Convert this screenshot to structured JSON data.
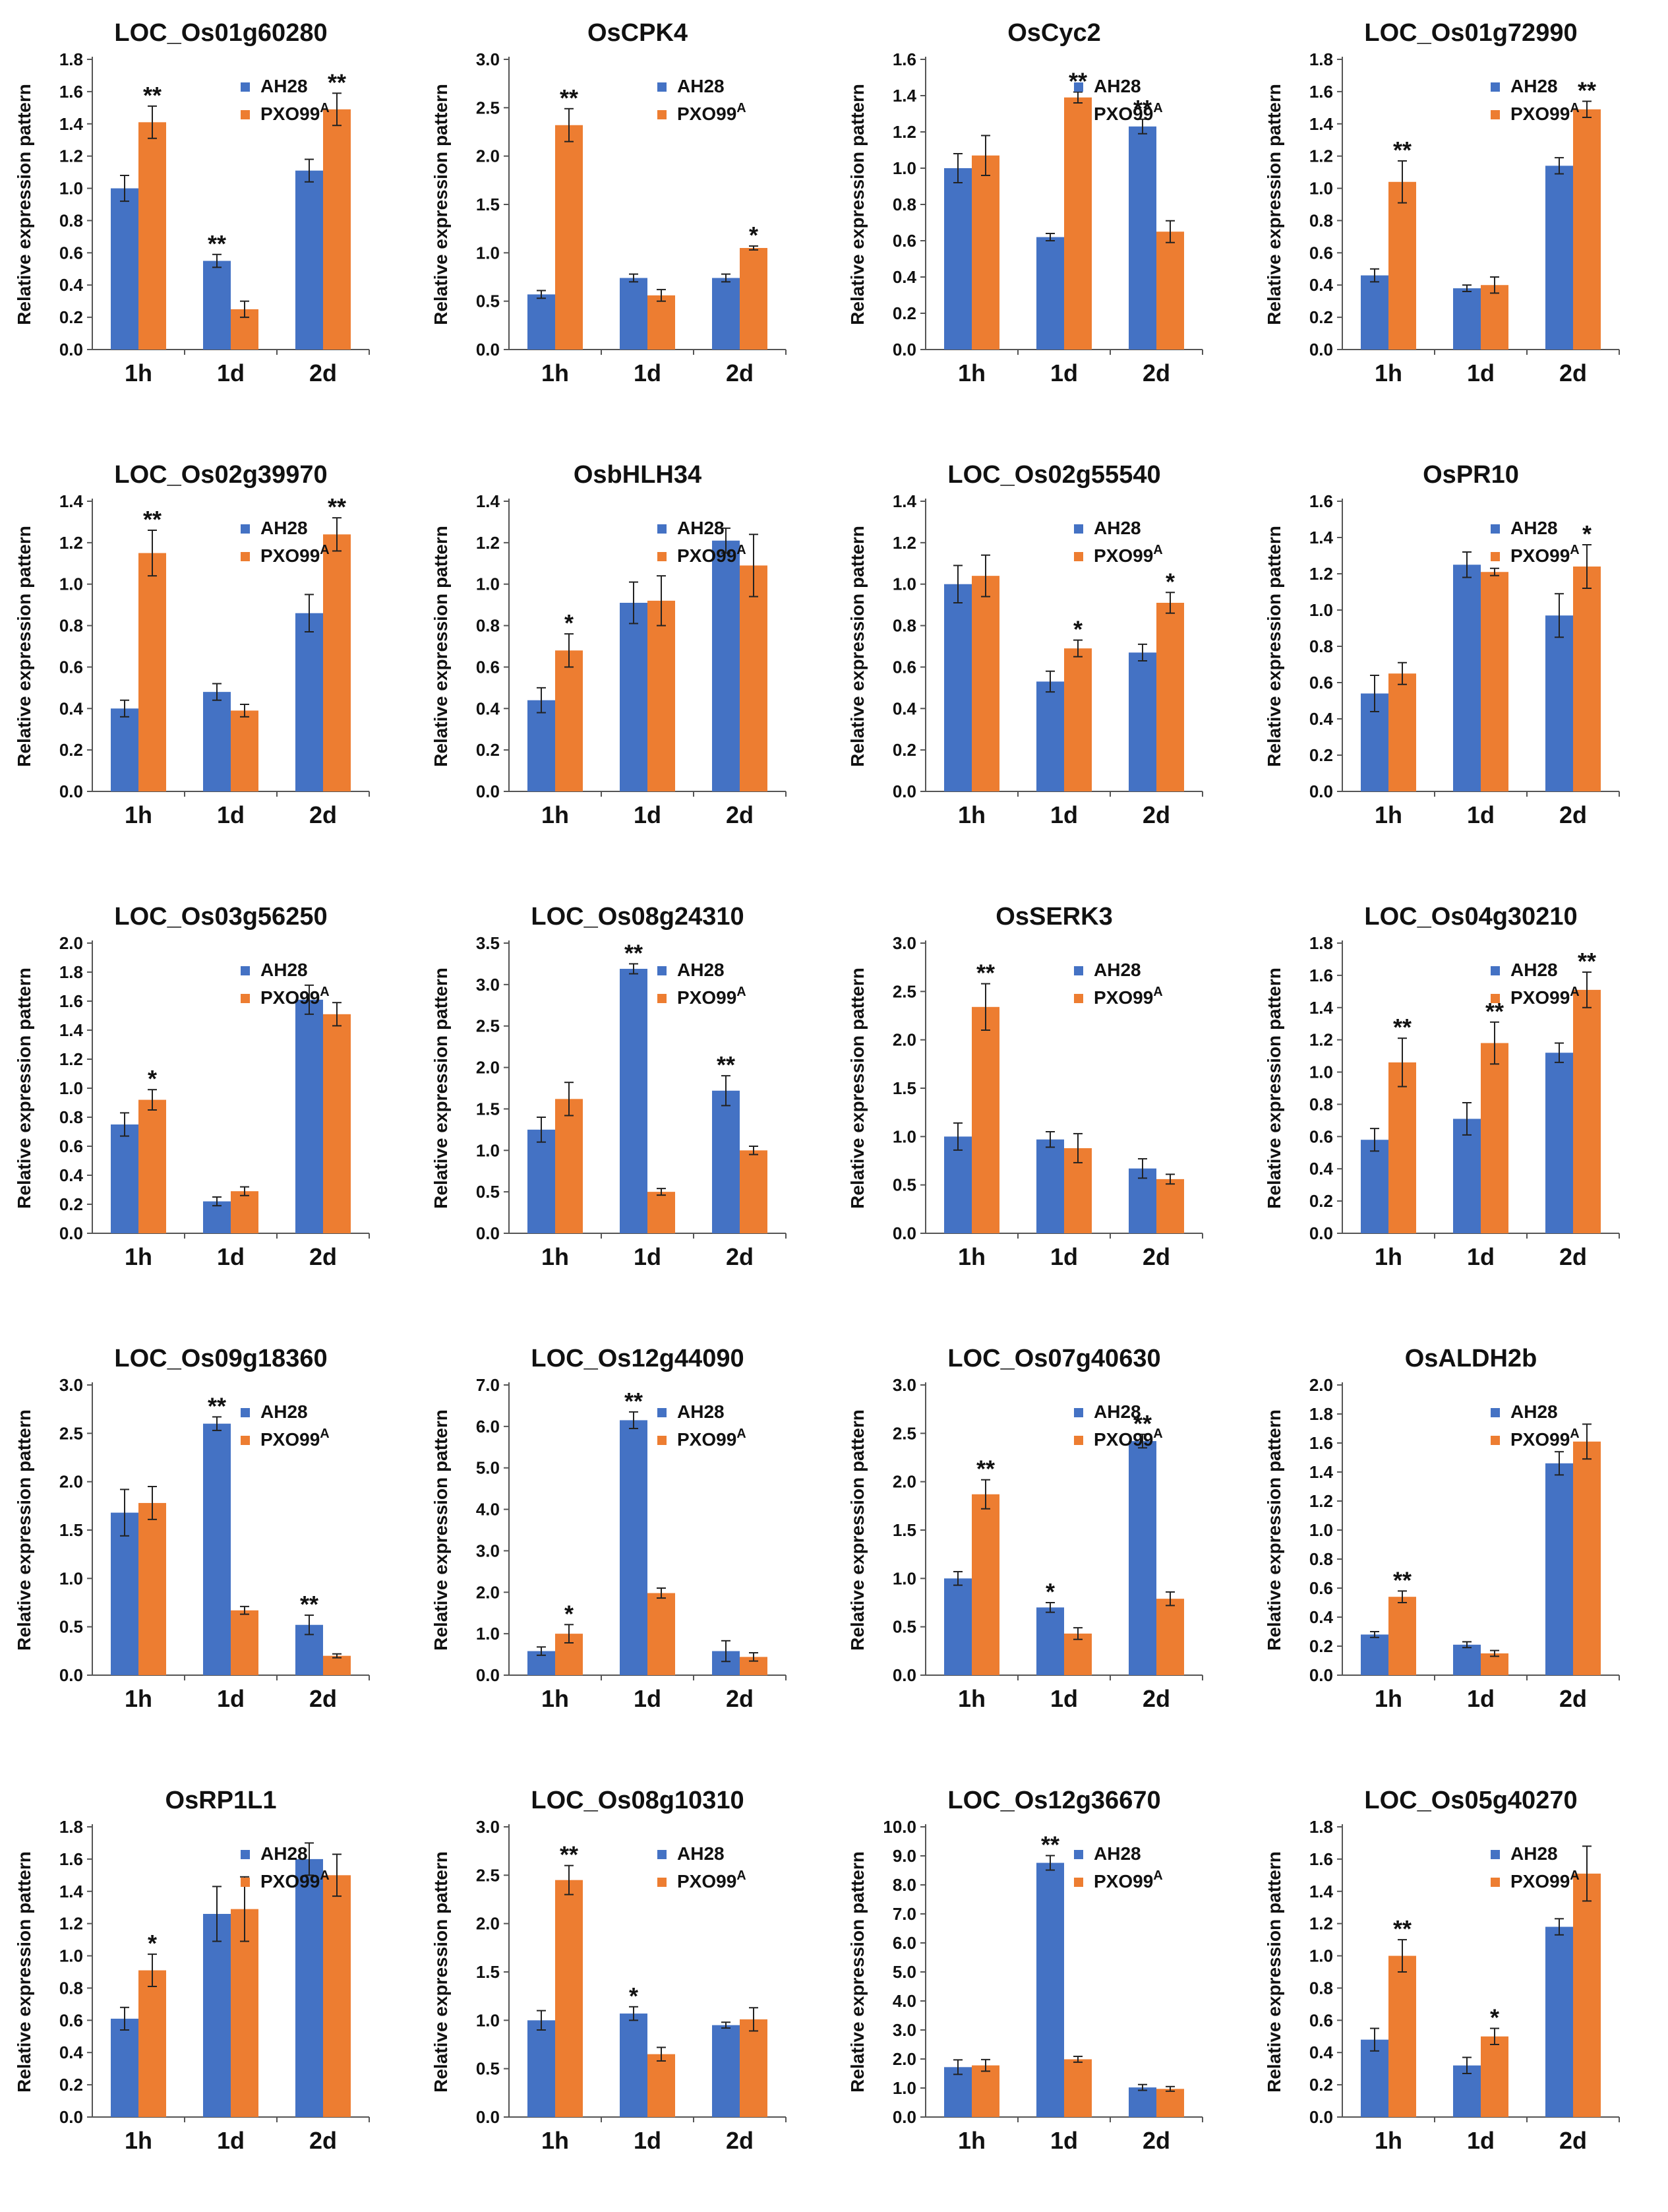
{
  "figure": {
    "series_names": [
      "AH28",
      "PXO99"
    ],
    "series_superscript": [
      "",
      "A"
    ],
    "series_colors": [
      "#4472C4",
      "#ED7D31"
    ],
    "ylabel": "Relative expression pattern"
  },
  "chart_data": [
    {
      "type": "bar",
      "title": "LOC_Os01g60280",
      "categories": [
        "1h",
        "1d",
        "2d"
      ],
      "ylim": [
        0,
        1.8
      ],
      "ticks": [
        "0.0",
        "0.2",
        "0.4",
        "0.6",
        "0.8",
        "1.0",
        "1.2",
        "1.4",
        "1.6",
        "1.8"
      ],
      "series": [
        {
          "name": "AH28",
          "values": [
            1.0,
            0.55,
            1.11
          ],
          "errors": [
            0.08,
            0.04,
            0.07
          ],
          "sig": [
            "",
            "**",
            ""
          ]
        },
        {
          "name": "PXO99A",
          "values": [
            1.41,
            0.25,
            1.49
          ],
          "errors": [
            0.1,
            0.05,
            0.1
          ],
          "sig": [
            "**",
            "",
            "**"
          ]
        }
      ]
    },
    {
      "type": "bar",
      "title": "OsCPK4",
      "categories": [
        "1h",
        "1d",
        "2d"
      ],
      "ylim": [
        0,
        3.0
      ],
      "ticks": [
        "0.0",
        "0.5",
        "1.0",
        "1.5",
        "2.0",
        "2.5",
        "3.0"
      ],
      "series": [
        {
          "name": "AH28",
          "values": [
            0.57,
            0.74,
            0.74
          ],
          "errors": [
            0.04,
            0.04,
            0.04
          ],
          "sig": [
            "",
            "",
            ""
          ]
        },
        {
          "name": "PXO99A",
          "values": [
            2.32,
            0.56,
            1.05
          ],
          "errors": [
            0.17,
            0.06,
            0.02
          ],
          "sig": [
            "**",
            "",
            "*"
          ]
        }
      ]
    },
    {
      "type": "bar",
      "title": "OsCyc2",
      "categories": [
        "1h",
        "1d",
        "2d"
      ],
      "ylim": [
        0,
        1.6
      ],
      "ticks": [
        "0.0",
        "0.2",
        "0.4",
        "0.6",
        "0.8",
        "1.0",
        "1.2",
        "1.4",
        "1.6"
      ],
      "series": [
        {
          "name": "AH28",
          "values": [
            1.0,
            0.62,
            1.23
          ],
          "errors": [
            0.08,
            0.02,
            0.04
          ],
          "sig": [
            "",
            "",
            "**"
          ]
        },
        {
          "name": "PXO99A",
          "values": [
            1.07,
            1.39,
            0.65
          ],
          "errors": [
            0.11,
            0.03,
            0.06
          ],
          "sig": [
            "",
            "**",
            ""
          ]
        }
      ]
    },
    {
      "type": "bar",
      "title": "LOC_Os01g72990",
      "categories": [
        "1h",
        "1d",
        "2d"
      ],
      "ylim": [
        0,
        1.8
      ],
      "ticks": [
        "0.0",
        "0.2",
        "0.4",
        "0.6",
        "0.8",
        "1.0",
        "1.2",
        "1.4",
        "1.6",
        "1.8"
      ],
      "series": [
        {
          "name": "AH28",
          "values": [
            0.46,
            0.38,
            1.14
          ],
          "errors": [
            0.04,
            0.02,
            0.05
          ],
          "sig": [
            "",
            "",
            ""
          ]
        },
        {
          "name": "PXO99A",
          "values": [
            1.04,
            0.4,
            1.49
          ],
          "errors": [
            0.13,
            0.05,
            0.05
          ],
          "sig": [
            "**",
            "",
            "**"
          ]
        }
      ]
    },
    {
      "type": "bar",
      "title": "LOC_Os02g39970",
      "categories": [
        "1h",
        "1d",
        "2d"
      ],
      "ylim": [
        0,
        1.4
      ],
      "ticks": [
        "0.0",
        "0.2",
        "0.4",
        "0.6",
        "0.8",
        "1.0",
        "1.2",
        "1.4"
      ],
      "series": [
        {
          "name": "AH28",
          "values": [
            0.4,
            0.48,
            0.86
          ],
          "errors": [
            0.04,
            0.04,
            0.09
          ],
          "sig": [
            "",
            "",
            ""
          ]
        },
        {
          "name": "PXO99A",
          "values": [
            1.15,
            0.39,
            1.24
          ],
          "errors": [
            0.11,
            0.03,
            0.08
          ],
          "sig": [
            "**",
            "",
            "**"
          ]
        }
      ]
    },
    {
      "type": "bar",
      "title": "OsbHLH34",
      "categories": [
        "1h",
        "1d",
        "2d"
      ],
      "ylim": [
        0,
        1.4
      ],
      "ticks": [
        "0.0",
        "0.2",
        "0.4",
        "0.6",
        "0.8",
        "1.0",
        "1.2",
        "1.4"
      ],
      "series": [
        {
          "name": "AH28",
          "values": [
            0.44,
            0.91,
            1.21
          ],
          "errors": [
            0.06,
            0.1,
            0.06
          ],
          "sig": [
            "",
            "",
            ""
          ]
        },
        {
          "name": "PXO99A",
          "values": [
            0.68,
            0.92,
            1.09
          ],
          "errors": [
            0.08,
            0.12,
            0.15
          ],
          "sig": [
            "*",
            "",
            ""
          ]
        }
      ]
    },
    {
      "type": "bar",
      "title": "LOC_Os02g55540",
      "categories": [
        "1h",
        "1d",
        "2d"
      ],
      "ylim": [
        0,
        1.4
      ],
      "ticks": [
        "0.0",
        "0.2",
        "0.4",
        "0.6",
        "0.8",
        "1.0",
        "1.2",
        "1.4"
      ],
      "series": [
        {
          "name": "AH28",
          "values": [
            1.0,
            0.53,
            0.67
          ],
          "errors": [
            0.09,
            0.05,
            0.04
          ],
          "sig": [
            "",
            "",
            ""
          ]
        },
        {
          "name": "PXO99A",
          "values": [
            1.04,
            0.69,
            0.91
          ],
          "errors": [
            0.1,
            0.04,
            0.05
          ],
          "sig": [
            "",
            "*",
            "*"
          ]
        }
      ]
    },
    {
      "type": "bar",
      "title": "OsPR10",
      "categories": [
        "1h",
        "1d",
        "2d"
      ],
      "ylim": [
        0,
        1.6
      ],
      "ticks": [
        "0.0",
        "0.2",
        "0.4",
        "0.6",
        "0.8",
        "1.0",
        "1.2",
        "1.4",
        "1.6"
      ],
      "series": [
        {
          "name": "AH28",
          "values": [
            0.54,
            1.25,
            0.97
          ],
          "errors": [
            0.1,
            0.07,
            0.12
          ],
          "sig": [
            "",
            "",
            ""
          ]
        },
        {
          "name": "PXO99A",
          "values": [
            0.65,
            1.21,
            1.24
          ],
          "errors": [
            0.06,
            0.02,
            0.12
          ],
          "sig": [
            "",
            "",
            "*"
          ]
        }
      ]
    },
    {
      "type": "bar",
      "title": "LOC_Os03g56250",
      "categories": [
        "1h",
        "1d",
        "2d"
      ],
      "ylim": [
        0,
        2.0
      ],
      "ticks": [
        "0.0",
        "0.2",
        "0.4",
        "0.6",
        "0.8",
        "1.0",
        "1.2",
        "1.4",
        "1.6",
        "1.8",
        "2.0"
      ],
      "series": [
        {
          "name": "AH28",
          "values": [
            0.75,
            0.22,
            1.61
          ],
          "errors": [
            0.08,
            0.03,
            0.1
          ],
          "sig": [
            "",
            "",
            ""
          ]
        },
        {
          "name": "PXO99A",
          "values": [
            0.92,
            0.29,
            1.51
          ],
          "errors": [
            0.07,
            0.03,
            0.08
          ],
          "sig": [
            "*",
            "",
            ""
          ]
        }
      ]
    },
    {
      "type": "bar",
      "title": "LOC_Os08g24310",
      "categories": [
        "1h",
        "1d",
        "2d"
      ],
      "ylim": [
        0,
        3.5
      ],
      "ticks": [
        "0.0",
        "0.5",
        "1.0",
        "1.5",
        "2.0",
        "2.5",
        "3.0",
        "3.5"
      ],
      "series": [
        {
          "name": "AH28",
          "values": [
            1.25,
            3.19,
            1.72
          ],
          "errors": [
            0.15,
            0.06,
            0.18
          ],
          "sig": [
            "",
            "**",
            "**"
          ]
        },
        {
          "name": "PXO99A",
          "values": [
            1.62,
            0.5,
            1.0
          ],
          "errors": [
            0.2,
            0.04,
            0.05
          ],
          "sig": [
            "",
            "",
            ""
          ]
        }
      ]
    },
    {
      "type": "bar",
      "title": "OsSERK3",
      "categories": [
        "1h",
        "1d",
        "2d"
      ],
      "ylim": [
        0,
        3.0
      ],
      "ticks": [
        "0.0",
        "0.5",
        "1.0",
        "1.5",
        "2.0",
        "2.5",
        "3.0"
      ],
      "series": [
        {
          "name": "AH28",
          "values": [
            1.0,
            0.97,
            0.67
          ],
          "errors": [
            0.14,
            0.08,
            0.1
          ],
          "sig": [
            "",
            "",
            ""
          ]
        },
        {
          "name": "PXO99A",
          "values": [
            2.34,
            0.88,
            0.56
          ],
          "errors": [
            0.24,
            0.15,
            0.05
          ],
          "sig": [
            "**",
            "",
            ""
          ]
        }
      ]
    },
    {
      "type": "bar",
      "title": "LOC_Os04g30210",
      "categories": [
        "1h",
        "1d",
        "2d"
      ],
      "ylim": [
        0,
        1.8
      ],
      "ticks": [
        "0.0",
        "0.2",
        "0.4",
        "0.6",
        "0.8",
        "1.0",
        "1.2",
        "1.4",
        "1.6",
        "1.8"
      ],
      "series": [
        {
          "name": "AH28",
          "values": [
            0.58,
            0.71,
            1.12
          ],
          "errors": [
            0.07,
            0.1,
            0.06
          ],
          "sig": [
            "",
            "",
            ""
          ]
        },
        {
          "name": "PXO99A",
          "values": [
            1.06,
            1.18,
            1.51
          ],
          "errors": [
            0.15,
            0.13,
            0.11
          ],
          "sig": [
            "**",
            "**",
            "**"
          ]
        }
      ]
    },
    {
      "type": "bar",
      "title": "LOC_Os09g18360",
      "categories": [
        "1h",
        "1d",
        "2d"
      ],
      "ylim": [
        0,
        3.0
      ],
      "ticks": [
        "0.0",
        "0.5",
        "1.0",
        "1.5",
        "2.0",
        "2.5",
        "3.0"
      ],
      "series": [
        {
          "name": "AH28",
          "values": [
            1.68,
            2.6,
            0.52
          ],
          "errors": [
            0.24,
            0.07,
            0.1
          ],
          "sig": [
            "",
            "**",
            "**"
          ]
        },
        {
          "name": "PXO99A",
          "values": [
            1.78,
            0.67,
            0.2
          ],
          "errors": [
            0.17,
            0.04,
            0.02
          ],
          "sig": [
            "",
            "",
            ""
          ]
        }
      ]
    },
    {
      "type": "bar",
      "title": "LOC_Os12g44090",
      "categories": [
        "1h",
        "1d",
        "2d"
      ],
      "ylim": [
        0,
        7.0
      ],
      "ticks": [
        "0.0",
        "1.0",
        "2.0",
        "3.0",
        "4.0",
        "5.0",
        "6.0",
        "7.0"
      ],
      "series": [
        {
          "name": "AH28",
          "values": [
            0.58,
            6.15,
            0.58
          ],
          "errors": [
            0.1,
            0.2,
            0.25
          ],
          "sig": [
            "",
            "**",
            ""
          ]
        },
        {
          "name": "PXO99A",
          "values": [
            1.0,
            1.98,
            0.44
          ],
          "errors": [
            0.22,
            0.12,
            0.1
          ],
          "sig": [
            "*",
            "",
            ""
          ]
        }
      ]
    },
    {
      "type": "bar",
      "title": "LOC_Os07g40630",
      "categories": [
        "1h",
        "1d",
        "2d"
      ],
      "ylim": [
        0,
        3.0
      ],
      "ticks": [
        "0.0",
        "0.5",
        "1.0",
        "1.5",
        "2.0",
        "2.5",
        "3.0"
      ],
      "series": [
        {
          "name": "AH28",
          "values": [
            1.0,
            0.7,
            2.42
          ],
          "errors": [
            0.07,
            0.05,
            0.07
          ],
          "sig": [
            "",
            "*",
            "**"
          ]
        },
        {
          "name": "PXO99A",
          "values": [
            1.87,
            0.43,
            0.79
          ],
          "errors": [
            0.15,
            0.06,
            0.07
          ],
          "sig": [
            "**",
            "",
            ""
          ]
        }
      ]
    },
    {
      "type": "bar",
      "title": "OsALDH2b",
      "categories": [
        "1h",
        "1d",
        "2d"
      ],
      "ylim": [
        0,
        2.0
      ],
      "ticks": [
        "0.0",
        "0.2",
        "0.4",
        "0.6",
        "0.8",
        "1.0",
        "1.2",
        "1.4",
        "1.6",
        "1.8",
        "2.0"
      ],
      "series": [
        {
          "name": "AH28",
          "values": [
            0.28,
            0.21,
            1.46
          ],
          "errors": [
            0.02,
            0.02,
            0.08
          ],
          "sig": [
            "",
            "",
            ""
          ]
        },
        {
          "name": "PXO99A",
          "values": [
            0.54,
            0.15,
            1.61
          ],
          "errors": [
            0.04,
            0.02,
            0.12
          ],
          "sig": [
            "**",
            "",
            ""
          ]
        }
      ]
    },
    {
      "type": "bar",
      "title": "OsRP1L1",
      "categories": [
        "1h",
        "1d",
        "2d"
      ],
      "ylim": [
        0,
        1.8
      ],
      "ticks": [
        "0.0",
        "0.2",
        "0.4",
        "0.6",
        "0.8",
        "1.0",
        "1.2",
        "1.4",
        "1.6",
        "1.8"
      ],
      "series": [
        {
          "name": "AH28",
          "values": [
            0.61,
            1.26,
            1.6
          ],
          "errors": [
            0.07,
            0.17,
            0.1
          ],
          "sig": [
            "",
            "",
            ""
          ]
        },
        {
          "name": "PXO99A",
          "values": [
            0.91,
            1.29,
            1.5
          ],
          "errors": [
            0.1,
            0.2,
            0.13
          ],
          "sig": [
            "*",
            "",
            ""
          ]
        }
      ]
    },
    {
      "type": "bar",
      "title": "LOC_Os08g10310",
      "categories": [
        "1h",
        "1d",
        "2d"
      ],
      "ylim": [
        0,
        3.0
      ],
      "ticks": [
        "0.0",
        "0.5",
        "1.0",
        "1.5",
        "2.0",
        "2.5",
        "3.0"
      ],
      "series": [
        {
          "name": "AH28",
          "values": [
            1.0,
            1.07,
            0.95
          ],
          "errors": [
            0.1,
            0.07,
            0.03
          ],
          "sig": [
            "",
            "*",
            ""
          ]
        },
        {
          "name": "PXO99A",
          "values": [
            2.45,
            0.65,
            1.01
          ],
          "errors": [
            0.15,
            0.07,
            0.12
          ],
          "sig": [
            "**",
            "",
            ""
          ]
        }
      ]
    },
    {
      "type": "bar",
      "title": "LOC_Os12g36670",
      "categories": [
        "1h",
        "1d",
        "2d"
      ],
      "ylim": [
        0,
        10.0
      ],
      "ticks": [
        "0.0",
        "1.0",
        "2.0",
        "3.0",
        "4.0",
        "5.0",
        "6.0",
        "7.0",
        "8.0",
        "9.0",
        "10.0"
      ],
      "series": [
        {
          "name": "AH28",
          "values": [
            1.72,
            8.76,
            1.02
          ],
          "errors": [
            0.25,
            0.25,
            0.1
          ],
          "sig": [
            "",
            "**",
            ""
          ]
        },
        {
          "name": "PXO99A",
          "values": [
            1.78,
            1.99,
            0.97
          ],
          "errors": [
            0.2,
            0.1,
            0.08
          ],
          "sig": [
            "",
            "",
            ""
          ]
        }
      ]
    },
    {
      "type": "bar",
      "title": "LOC_Os05g40270",
      "categories": [
        "1h",
        "1d",
        "2d"
      ],
      "ylim": [
        0,
        1.8
      ],
      "ticks": [
        "0.0",
        "0.2",
        "0.4",
        "0.6",
        "0.8",
        "1.0",
        "1.2",
        "1.4",
        "1.6",
        "1.8"
      ],
      "series": [
        {
          "name": "AH28",
          "values": [
            0.48,
            0.32,
            1.18
          ],
          "errors": [
            0.07,
            0.05,
            0.05
          ],
          "sig": [
            "",
            "",
            ""
          ]
        },
        {
          "name": "PXO99A",
          "values": [
            1.0,
            0.5,
            1.51
          ],
          "errors": [
            0.1,
            0.05,
            0.17
          ],
          "sig": [
            "**",
            "*",
            ""
          ]
        }
      ]
    }
  ]
}
